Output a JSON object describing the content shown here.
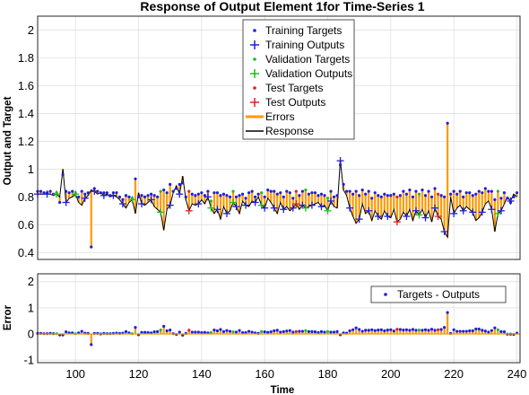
{
  "colors": {
    "training": "#1f1fd6",
    "validation": "#22bb22",
    "test": "#e02020",
    "errors": "#ff9900",
    "response": "#000000"
  },
  "chart_data": [
    {
      "type": "line",
      "title": "Response of Output Element 1for Time-Series 1",
      "xlabel": "",
      "ylabel": "Output and Target",
      "xlim": [
        88,
        241
      ],
      "ylim": [
        0.35,
        2.1
      ],
      "x_ticks": [
        "100",
        "120",
        "140",
        "160",
        "180",
        "200",
        "220",
        "240"
      ],
      "y_ticks": [
        "0.4",
        "0.6",
        "0.8",
        "1",
        "1.2",
        "1.4",
        "1.6",
        "1.8",
        "2"
      ],
      "grid": true,
      "legend_position": "top-center",
      "legend": [
        "Training Targets",
        "Training Outputs",
        "Validation Targets",
        "Validation Outputs",
        "Test Targets",
        "Test Outputs",
        "Errors",
        "Response"
      ],
      "x": [
        88,
        89,
        90,
        91,
        92,
        93,
        94,
        95,
        96,
        97,
        98,
        99,
        100,
        101,
        102,
        103,
        104,
        105,
        106,
        107,
        108,
        109,
        110,
        111,
        112,
        113,
        114,
        115,
        116,
        117,
        118,
        119,
        120,
        121,
        122,
        123,
        124,
        125,
        126,
        127,
        128,
        129,
        130,
        131,
        132,
        133,
        134,
        135,
        136,
        137,
        138,
        139,
        140,
        141,
        142,
        143,
        144,
        145,
        146,
        147,
        148,
        149,
        150,
        151,
        152,
        153,
        154,
        155,
        156,
        157,
        158,
        159,
        160,
        161,
        162,
        163,
        164,
        165,
        166,
        167,
        168,
        169,
        170,
        171,
        172,
        173,
        174,
        175,
        176,
        177,
        178,
        179,
        180,
        181,
        182,
        183,
        184,
        185,
        186,
        187,
        188,
        189,
        190,
        191,
        192,
        193,
        194,
        195,
        196,
        197,
        198,
        199,
        200,
        201,
        202,
        203,
        204,
        205,
        206,
        207,
        208,
        209,
        210,
        211,
        212,
        213,
        214,
        215,
        216,
        217,
        218,
        219,
        220,
        221,
        222,
        223,
        224,
        225,
        226,
        227,
        228,
        229,
        230,
        231,
        232,
        233,
        234,
        235,
        236,
        237,
        238,
        239,
        240
      ],
      "targets": [
        0.84,
        0.84,
        0.83,
        0.83,
        0.84,
        0.82,
        0.83,
        0.76,
        0.96,
        0.84,
        0.83,
        0.84,
        0.83,
        0.8,
        0.84,
        0.82,
        0.83,
        0.44,
        0.86,
        0.84,
        0.83,
        0.83,
        0.83,
        0.81,
        0.83,
        0.83,
        0.8,
        0.78,
        0.81,
        0.8,
        0.79,
        0.93,
        0.8,
        0.81,
        0.8,
        0.81,
        0.82,
        0.81,
        0.8,
        0.84,
        0.85,
        0.83,
        0.89,
        0.84,
        0.86,
        0.89,
        0.9,
        0.8,
        0.84,
        0.82,
        0.81,
        0.82,
        0.83,
        0.81,
        0.84,
        0.77,
        0.83,
        0.83,
        0.81,
        0.82,
        0.81,
        0.8,
        0.84,
        0.8,
        0.81,
        0.82,
        0.79,
        0.83,
        0.84,
        0.8,
        0.82,
        0.83,
        0.8,
        0.85,
        0.84,
        0.84,
        0.82,
        0.83,
        0.8,
        0.84,
        0.83,
        0.79,
        0.84,
        0.81,
        0.84,
        0.85,
        0.82,
        0.83,
        0.83,
        0.81,
        0.82,
        0.81,
        0.79,
        0.84,
        0.8,
        0.81,
        1.03,
        0.89,
        0.84,
        0.84,
        0.82,
        0.84,
        0.81,
        0.85,
        0.82,
        0.84,
        0.79,
        0.83,
        0.81,
        0.8,
        0.82,
        0.81,
        0.81,
        0.82,
        0.8,
        0.81,
        0.84,
        0.82,
        0.85,
        0.8,
        0.84,
        0.82,
        0.85,
        0.81,
        0.84,
        0.8,
        0.86,
        0.82,
        0.81,
        0.8,
        1.33,
        0.82,
        0.84,
        0.82,
        0.84,
        0.8,
        0.83,
        0.83,
        0.81,
        0.82,
        0.84,
        0.83,
        0.86,
        0.84,
        0.84,
        0.78,
        0.84,
        0.79,
        0.83,
        0.79,
        0.76,
        0.8,
        0.83
      ],
      "outputs": [
        0.82,
        0.82,
        0.82,
        0.82,
        0.82,
        0.81,
        0.82,
        0.8,
        1.0,
        0.76,
        0.79,
        0.8,
        0.82,
        0.76,
        0.74,
        0.79,
        0.81,
        0.85,
        0.84,
        0.82,
        0.83,
        0.81,
        0.82,
        0.8,
        0.81,
        0.8,
        0.78,
        0.75,
        0.72,
        0.76,
        0.78,
        0.68,
        0.83,
        0.75,
        0.74,
        0.76,
        0.78,
        0.73,
        0.71,
        0.69,
        0.56,
        0.71,
        0.74,
        0.83,
        0.88,
        0.82,
        0.95,
        0.78,
        0.7,
        0.75,
        0.74,
        0.75,
        0.78,
        0.75,
        0.8,
        0.72,
        0.68,
        0.71,
        0.64,
        0.73,
        0.68,
        0.7,
        0.76,
        0.73,
        0.68,
        0.77,
        0.74,
        0.73,
        0.77,
        0.76,
        0.8,
        0.74,
        0.72,
        0.79,
        0.76,
        0.72,
        0.68,
        0.76,
        0.71,
        0.73,
        0.7,
        0.72,
        0.75,
        0.71,
        0.74,
        0.72,
        0.73,
        0.74,
        0.75,
        0.76,
        0.73,
        0.74,
        0.7,
        0.77,
        0.73,
        0.72,
        1.06,
        0.85,
        0.81,
        0.72,
        0.66,
        0.61,
        0.64,
        0.75,
        0.68,
        0.7,
        0.63,
        0.7,
        0.66,
        0.64,
        0.7,
        0.66,
        0.65,
        0.71,
        0.62,
        0.64,
        0.69,
        0.66,
        0.71,
        0.63,
        0.7,
        0.67,
        0.71,
        0.65,
        0.7,
        0.62,
        0.72,
        0.66,
        0.64,
        0.55,
        0.51,
        0.8,
        0.68,
        0.72,
        0.74,
        0.7,
        0.73,
        0.71,
        0.69,
        0.63,
        0.65,
        0.69,
        0.75,
        0.77,
        0.71,
        0.55,
        0.68,
        0.7,
        0.75,
        0.8,
        0.77,
        0.82,
        0.8
      ],
      "split": "TTTTTTVTTTTTVTTTTTTTTTTTTTTTTTVTTTTTTTTVTTTTTTTTXTTTTTTVTTTTTTVTTTTTTTTVTTTTTTTTTTXTTVTTTTTTVTTTTTTTTTTTTTTTTTTTTTXTTTTTTVTTTTTXTTTTTTTTTTTTTTTTTTVTTTTTTTXTTTTT"
    },
    {
      "type": "line",
      "title": "",
      "xlabel": "Time",
      "ylabel": "Error",
      "xlim": [
        88,
        241
      ],
      "ylim": [
        -1.1,
        2.3
      ],
      "x_ticks": [
        "100",
        "120",
        "140",
        "160",
        "180",
        "200",
        "220",
        "240"
      ],
      "y_ticks": [
        "-1",
        "0",
        "1",
        "2"
      ],
      "grid": true,
      "legend_position": "top-right",
      "legend": [
        "Targets - Outputs"
      ]
    }
  ]
}
